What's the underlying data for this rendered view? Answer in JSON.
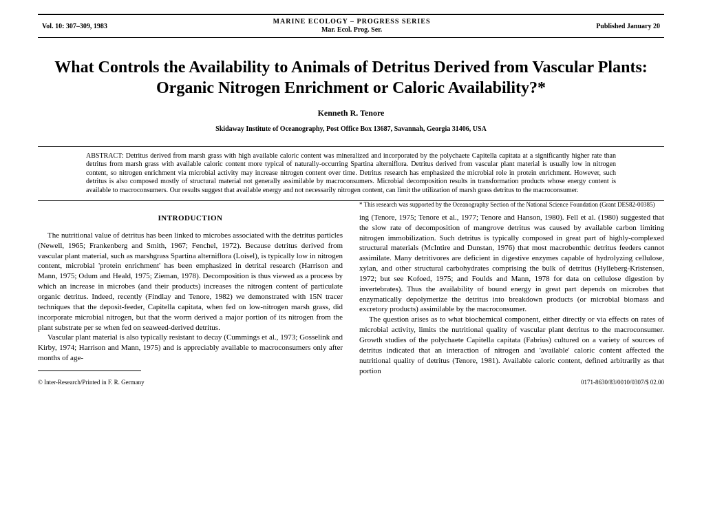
{
  "header": {
    "left": "Vol. 10: 307–309, 1983",
    "center_line1": "MARINE ECOLOGY – PROGRESS SERIES",
    "center_line2": "Mar. Ecol. Prog. Ser.",
    "right": "Published January 20"
  },
  "title": "What Controls the Availability to Animals of Detritus Derived from Vascular Plants: Organic Nitrogen Enrichment or Caloric Availability?*",
  "author": "Kenneth R. Tenore",
  "affiliation": "Skidaway Institute of Oceanography, Post Office Box 13687, Savannah, Georgia 31406, USA",
  "abstract_label": "ABSTRACT: ",
  "abstract_text": "Detritus derived from marsh grass with high available caloric content was mineralized and incorporated by the polychaete Capitella capitata at a significantly higher rate than detritus from marsh grass with available caloric content more typical of naturally-occurring Spartina alterniflora. Detritus derived from vascular plant material is usually low in nitrogen content, so nitrogen enrichment via microbial activity may increase nitrogen content over time. Detritus research has emphasized the microbial role in protein enrichment. However, such detritus is also composed mostly of structural material not generally assimilable by macroconsumers. Microbial decomposition results in transformation products whose energy content is available to macroconsumers. Our results suggest that available energy and not necessarily nitrogen content, can limit the utilization of marsh grass detritus to the macroconsumer.",
  "section_heading": "INTRODUCTION",
  "para1": "The nutritional value of detritus has been linked to microbes associated with the detritus particles (Newell, 1965; Frankenberg and Smith, 1967; Fenchel, 1972). Because detritus derived from vascular plant material, such as marshgrass Spartina alterniflora (Loisel), is typically low in nitrogen content, microbial 'protein enrichment' has been emphasized in detrital research (Harrison and Mann, 1975; Odum and Heald, 1975; Zieman, 1978). Decomposition is thus viewed as a process by which an increase in microbes (and their products) increases the nitrogen content of particulate organic detritus. Indeed, recently (Findlay and Tenore, 1982) we demonstrated with 15N tracer techniques that the deposit-feeder, Capitella capitata, when fed on low-nitrogen marsh grass, did incorporate microbial nitrogen, but that the worm derived a major portion of its nitrogen from the plant substrate per se when fed on seaweed-derived detritus.",
  "para2": "Vascular plant material is also typically resistant to decay (Cummings et al., 1973; Gosselink and Kirby, 1974; Harrison and Mann, 1975) and is appreciably available to macroconsumers only after months of age-",
  "para3": "ing (Tenore, 1975; Tenore et al., 1977; Tenore and Hanson, 1980). Fell et al. (1980) suggested that the slow rate of decomposition of mangrove detritus was caused by available carbon limiting nitrogen immobilization. Such detritus is typically composed in great part of highly-complexed structural materials (McIntire and Dunstan, 1976) that most macrobenthic detritus feeders cannot assimilate. Many detritivores are deficient in digestive enzymes capable of hydrolyzing cellulose, xylan, and other structural carbohydrates comprising the bulk of detritus (Hylleberg-Kristensen, 1972; but see Kofoed, 1975; and Foulds and Mann, 1978 for data on cellulose digestion by invertebrates). Thus the availability of bound energy in great part depends on microbes that enzymatically depolymerize the detritus into breakdown products (or microbial biomass and excretory products) assimilable by the macroconsumer.",
  "para4": "The question arises as to what biochemical component, either directly or via effects on rates of microbial activity, limits the nutritional quality of vascular plant detritus to the macroconsumer. Growth studies of the polychaete Capitella capitata (Fabrius) cultured on a variety of sources of detritus indicated that an interaction of nitrogen and 'available' caloric content affected the nutritional quality of detritus (Tenore, 1981). Available caloric content, defined arbitrarily as that portion",
  "footnote": "* This research was supported by the Oceanography Section of the National Science Foundation (Grant DES82-00385)",
  "bottom_left": "© Inter-Research/Printed in F. R. Germany",
  "bottom_right": "0171-8630/83/0010/0307/$ 02.00"
}
